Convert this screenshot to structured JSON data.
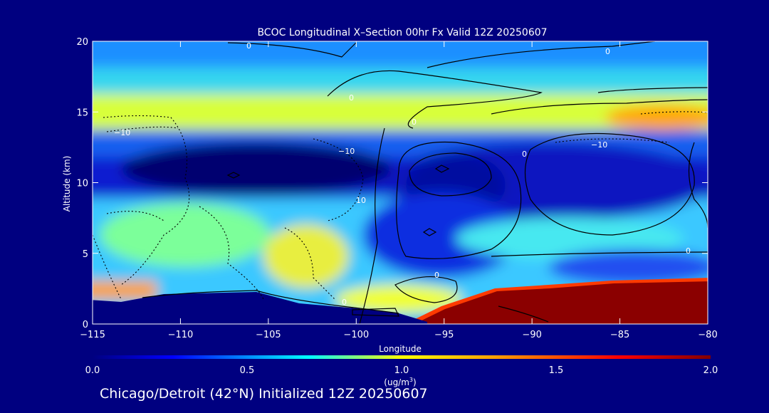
{
  "chart_data": {
    "type": "heatmap",
    "title": "BCOC Longitudinal X–Section 00hr  Fx Valid 12Z 20250607",
    "xlabel": "Longitude",
    "ylabel": "Altitude (km)",
    "xlim": [
      -115,
      -80
    ],
    "ylim": [
      0,
      20
    ],
    "x_ticks": [
      -115,
      -110,
      -105,
      -100,
      -95,
      -90,
      -85,
      -80
    ],
    "x_tick_labels": [
      "−115",
      "−110",
      "−105",
      "−100",
      "−95",
      "−90",
      "−85",
      "−80"
    ],
    "y_ticks": [
      0,
      5,
      10,
      15,
      20
    ],
    "y_tick_labels": [
      "0",
      "5",
      "10",
      "15",
      "20"
    ],
    "colorbar": {
      "min": 0.0,
      "max": 2.0,
      "tick_values": [
        0.0,
        0.5,
        1.0,
        1.5,
        2.0
      ],
      "tick_labels": [
        "0.0",
        "0.5",
        "1.0",
        "1.5",
        "2.0"
      ],
      "unit_base": "(ug/m",
      "unit_exp": "3",
      "unit_close": ")"
    },
    "contour_labels": [
      "0",
      "0",
      "0",
      "0",
      "0",
      "0",
      "0",
      "0",
      "−10",
      "−10",
      "−10",
      "10"
    ],
    "colors": {
      "background": "#000080",
      "low": "#00008b",
      "high": "#8b0000",
      "terrain": "#000080"
    }
  },
  "footer": {
    "location": "Chicago/Detroit (42°N) Initialized 12Z 20250607"
  }
}
